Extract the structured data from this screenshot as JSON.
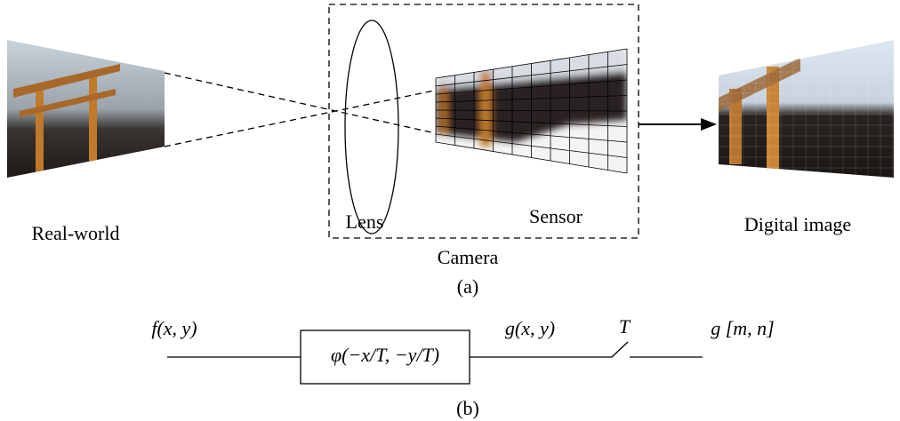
{
  "part_a": {
    "real_world": "Real-world",
    "lens": "Lens",
    "sensor": "Sensor",
    "camera": "Camera",
    "digital_image": "Digital image",
    "caption": "(a)"
  },
  "part_b": {
    "input": "f(x, y)",
    "filter": "φ(−x/T, −y/T)",
    "filtered": "g(x, y)",
    "sampler": "T",
    "output": "g [m, n]",
    "caption": "(b)"
  }
}
